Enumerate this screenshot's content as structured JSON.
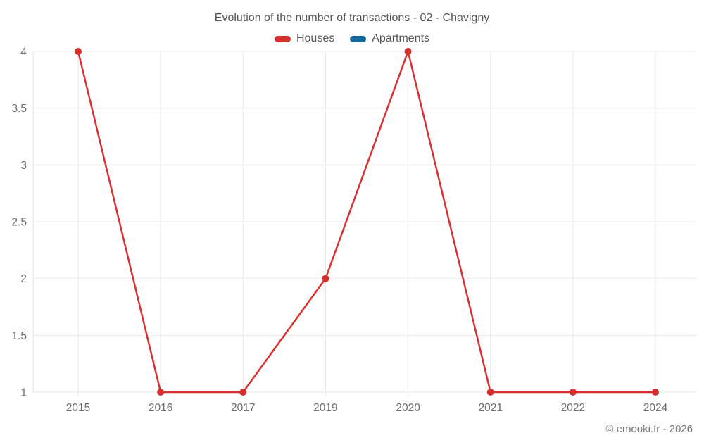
{
  "title": "Evolution of the number of transactions - 02 - Chavigny",
  "legend": [
    {
      "label": "Houses",
      "color": "#d6312e"
    },
    {
      "label": "Apartments",
      "color": "#16699f"
    }
  ],
  "watermark": "© emooki.fr - 2026",
  "chart_data": {
    "type": "line",
    "title": "Evolution of the number of transactions - 02 - Chavigny",
    "categories": [
      "2015",
      "2016",
      "2017",
      "2019",
      "2020",
      "2021",
      "2022",
      "2024"
    ],
    "series": [
      {
        "name": "Houses",
        "color": "#d6312e",
        "values": [
          4,
          1,
          1,
          2,
          4,
          1,
          1,
          1
        ]
      },
      {
        "name": "Apartments",
        "color": "#16699f",
        "values": []
      }
    ],
    "xlabel": "",
    "ylabel": "",
    "ylim": [
      1,
      4
    ],
    "yticks": [
      1,
      1.5,
      2,
      2.5,
      3,
      3.5,
      4
    ],
    "grid": true,
    "legend_position": "top",
    "colors": {
      "gridline": "#e9e9e9",
      "axis_line": "#e0e0e0",
      "tick_label": "#6e6e6e"
    }
  }
}
